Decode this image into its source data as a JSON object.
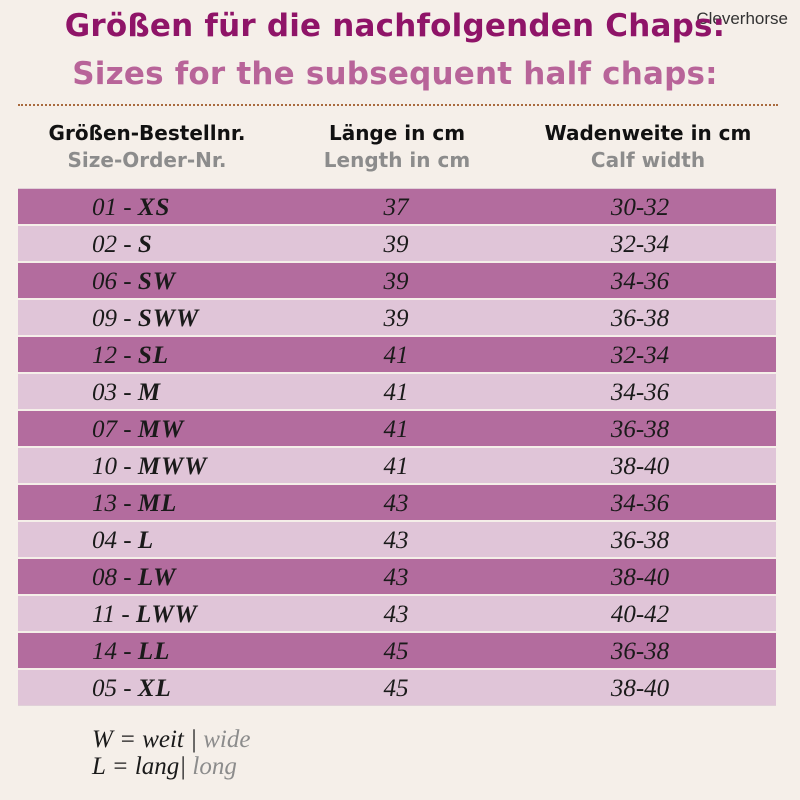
{
  "watermark": "Cleverhorse",
  "title": {
    "de": "Größen für die nachfolgenden Chaps:",
    "en": "Sizes for the subsequent half chaps:"
  },
  "headers": {
    "size": {
      "de": "Größen-Bestellnr.",
      "en": "Size-Order-Nr."
    },
    "length": {
      "de": "Länge in cm",
      "en": "Length in cm"
    },
    "calf": {
      "de": "Wadenweite in cm",
      "en": "Calf width"
    }
  },
  "rows": [
    {
      "num": "01",
      "code": "XS",
      "length": "37",
      "calf": "30-32"
    },
    {
      "num": "02",
      "code": "S",
      "length": "39",
      "calf": "32-34"
    },
    {
      "num": "06",
      "code": "SW",
      "length": "39",
      "calf": "34-36"
    },
    {
      "num": "09",
      "code": "SWW",
      "length": "39",
      "calf": "36-38"
    },
    {
      "num": "12",
      "code": "SL",
      "length": "41",
      "calf": "32-34"
    },
    {
      "num": "03",
      "code": "M",
      "length": "41",
      "calf": "34-36"
    },
    {
      "num": "07",
      "code": "MW",
      "length": "41",
      "calf": "36-38"
    },
    {
      "num": "10",
      "code": "MWW",
      "length": "41",
      "calf": "38-40"
    },
    {
      "num": "13",
      "code": "ML",
      "length": "43",
      "calf": "34-36"
    },
    {
      "num": "04",
      "code": "L",
      "length": "43",
      "calf": "36-38"
    },
    {
      "num": "08",
      "code": "LW",
      "length": "43",
      "calf": "38-40"
    },
    {
      "num": "11",
      "code": "LWW",
      "length": "43",
      "calf": "40-42"
    },
    {
      "num": "14",
      "code": "LL",
      "length": "45",
      "calf": "36-38"
    },
    {
      "num": "05",
      "code": "XL",
      "length": "45",
      "calf": "38-40"
    }
  ],
  "legend": {
    "w": {
      "de": "W = weit",
      "sep": "|",
      "en": "wide"
    },
    "l": {
      "de": "L = lang",
      "sep": "|",
      "en": "long"
    }
  },
  "colors": {
    "title_de": "#8f1468",
    "title_en": "#b86499",
    "row_dark": "#b36c9e",
    "row_light": "#e0c5d8",
    "background": "#f5efe9"
  }
}
